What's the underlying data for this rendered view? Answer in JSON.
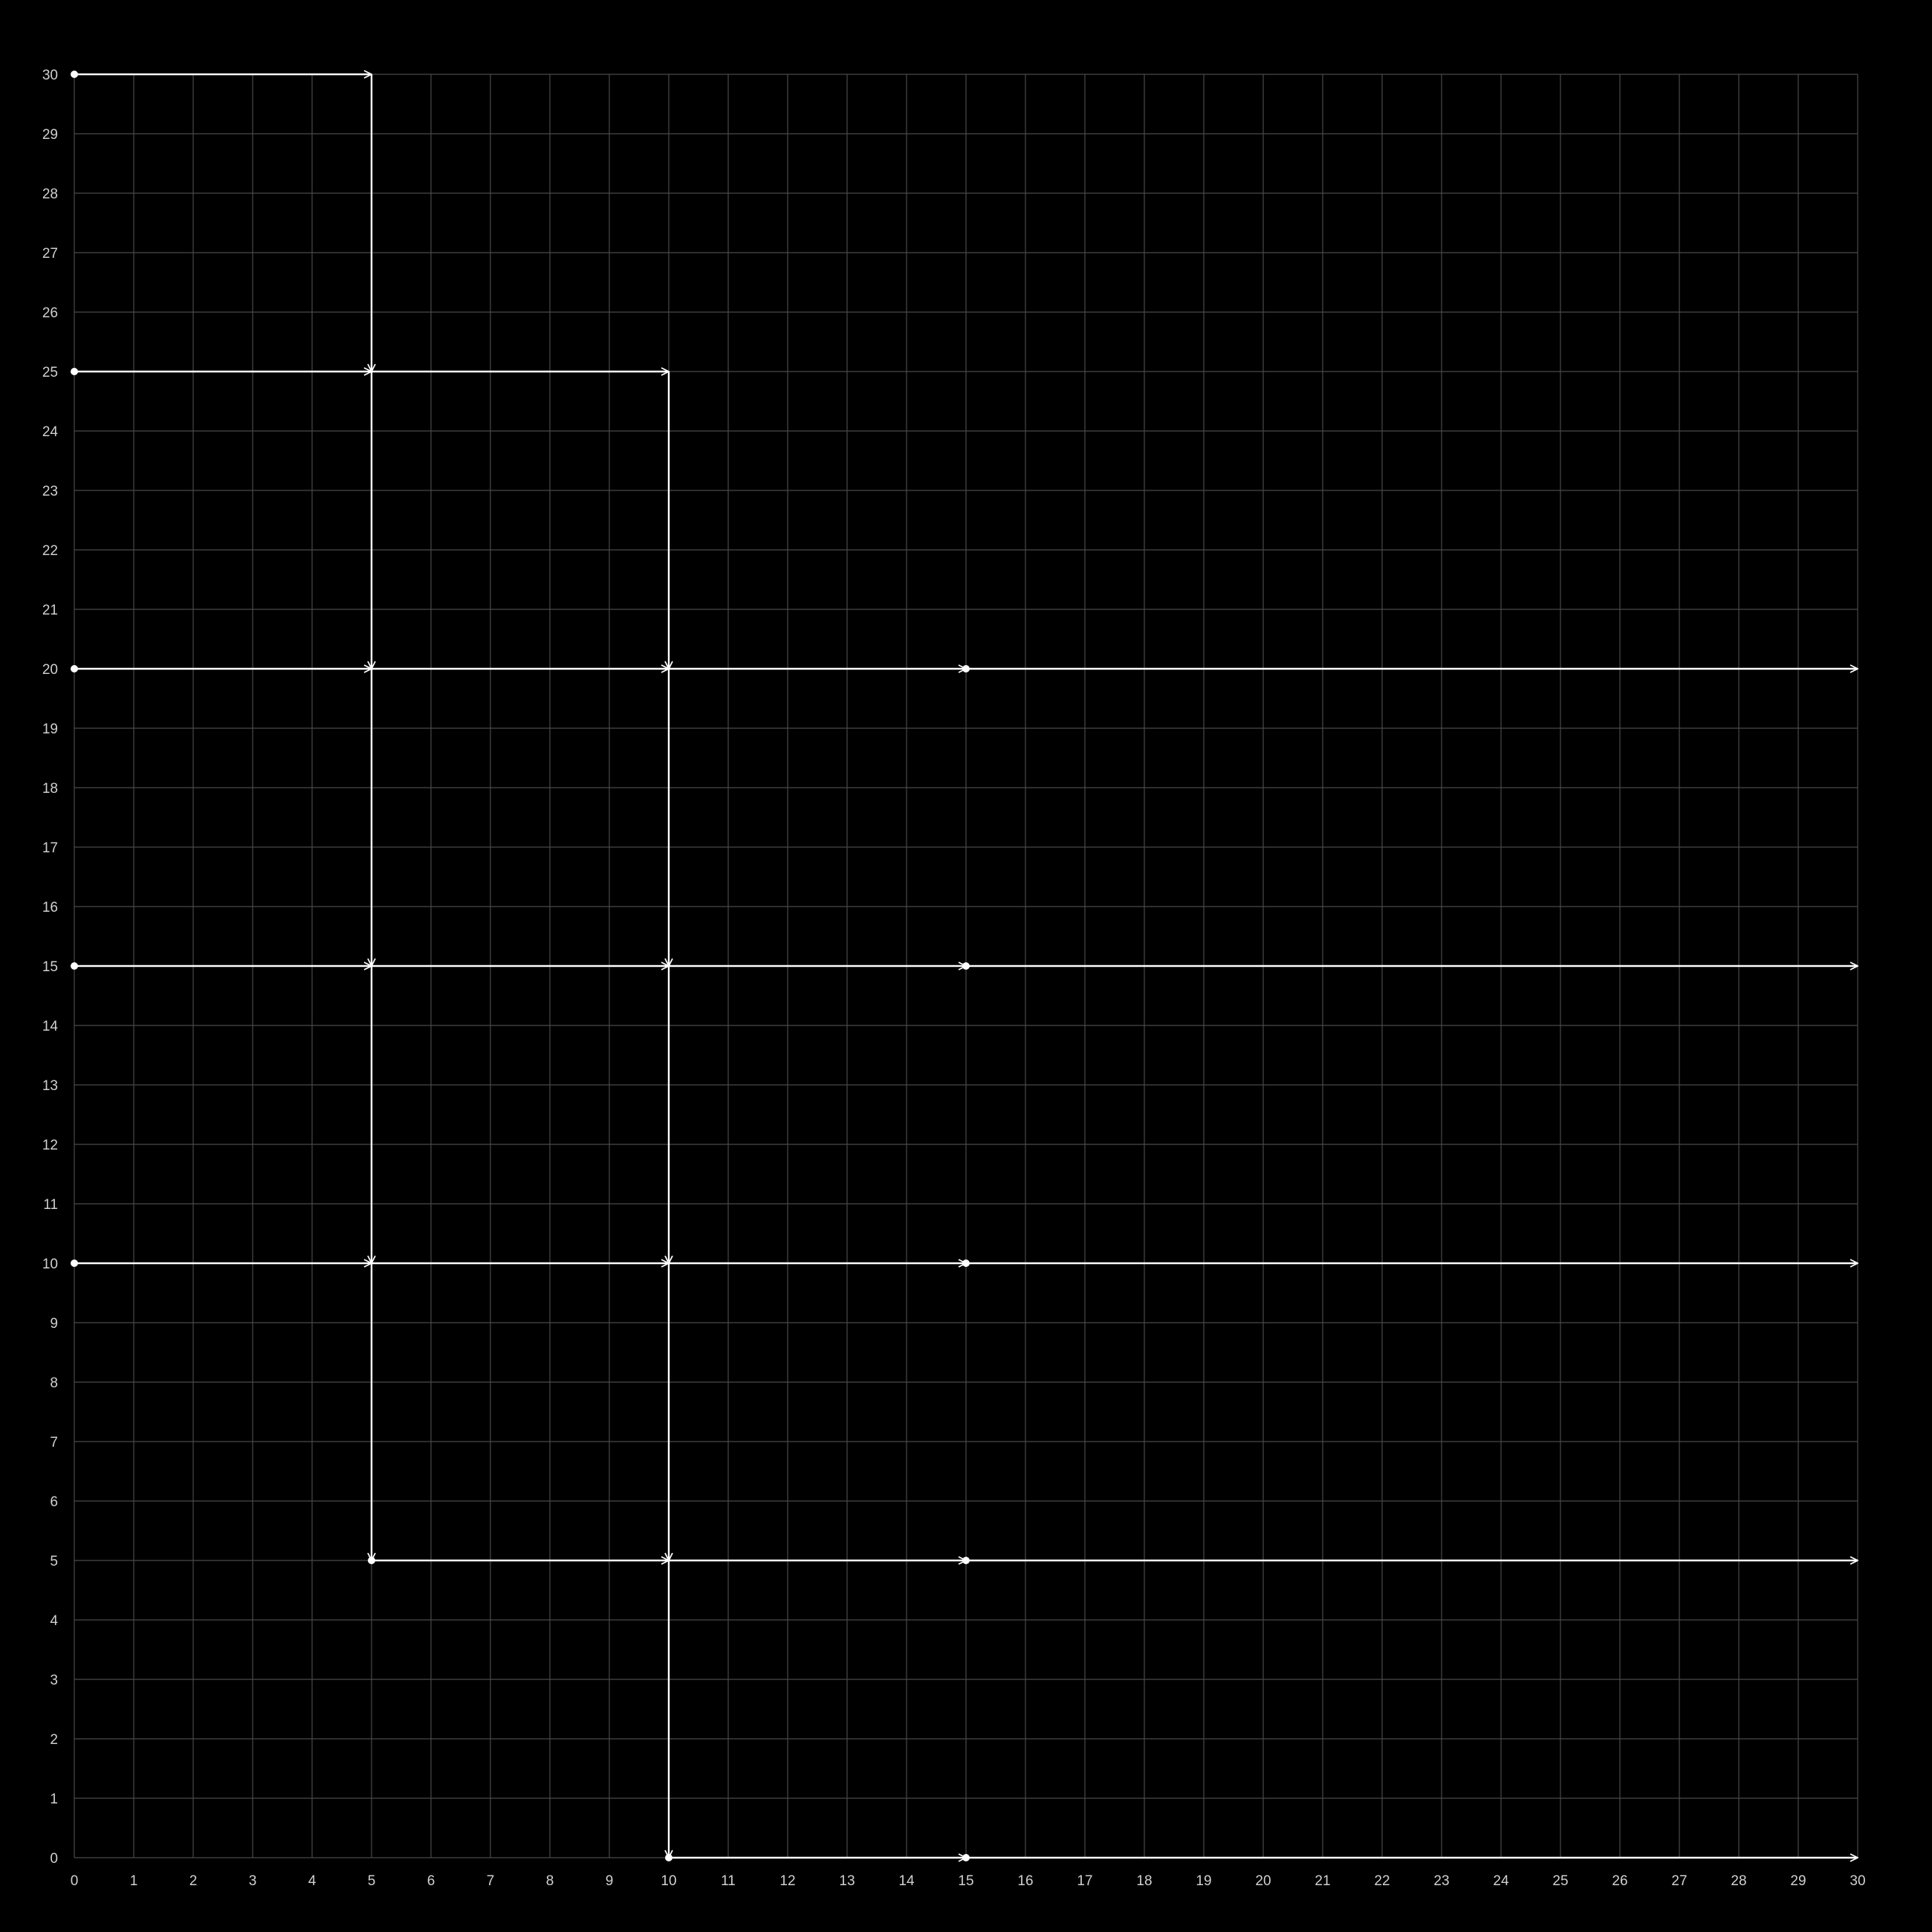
{
  "diagram": {
    "type": "grid-graph",
    "colors": {
      "background": "#000000",
      "grid": "#4a4a4a",
      "edge": "#ffffff",
      "label": "#d0d0d0"
    },
    "x_range": [
      0,
      30
    ],
    "y_range": [
      0,
      30
    ],
    "x_ticks": [
      "0",
      "1",
      "2",
      "3",
      "4",
      "5",
      "6",
      "7",
      "8",
      "9",
      "10",
      "11",
      "12",
      "13",
      "14",
      "15",
      "16",
      "17",
      "18",
      "19",
      "20",
      "21",
      "22",
      "23",
      "24",
      "25",
      "26",
      "27",
      "28",
      "29",
      "30"
    ],
    "y_ticks": [
      "0",
      "1",
      "2",
      "3",
      "4",
      "5",
      "6",
      "7",
      "8",
      "9",
      "10",
      "11",
      "12",
      "13",
      "14",
      "15",
      "16",
      "17",
      "18",
      "19",
      "20",
      "21",
      "22",
      "23",
      "24",
      "25",
      "26",
      "27",
      "28",
      "29",
      "30"
    ],
    "nodes": [
      {
        "id": "n-0-30",
        "x": 0,
        "y": 30
      },
      {
        "id": "n-0-25",
        "x": 0,
        "y": 25
      },
      {
        "id": "n-0-20",
        "x": 0,
        "y": 20
      },
      {
        "id": "n-0-15",
        "x": 0,
        "y": 15
      },
      {
        "id": "n-0-10",
        "x": 0,
        "y": 10
      },
      {
        "id": "n-5-5",
        "x": 5,
        "y": 5
      },
      {
        "id": "n-10-0",
        "x": 10,
        "y": 0
      },
      {
        "id": "n-15-20",
        "x": 15,
        "y": 20
      },
      {
        "id": "n-15-15",
        "x": 15,
        "y": 15
      },
      {
        "id": "n-15-10",
        "x": 15,
        "y": 10
      },
      {
        "id": "n-15-5",
        "x": 15,
        "y": 5
      },
      {
        "id": "n-15-0",
        "x": 15,
        "y": 0
      }
    ],
    "edges": [
      {
        "from": [
          0,
          30
        ],
        "to": [
          5,
          30
        ]
      },
      {
        "from": [
          5,
          30
        ],
        "to": [
          5,
          25
        ]
      },
      {
        "from": [
          0,
          25
        ],
        "to": [
          5,
          25
        ]
      },
      {
        "from": [
          5,
          25
        ],
        "to": [
          10,
          25
        ]
      },
      {
        "from": [
          5,
          25
        ],
        "to": [
          5,
          20
        ]
      },
      {
        "from": [
          10,
          25
        ],
        "to": [
          10,
          20
        ]
      },
      {
        "from": [
          0,
          20
        ],
        "to": [
          5,
          20
        ]
      },
      {
        "from": [
          5,
          20
        ],
        "to": [
          10,
          20
        ]
      },
      {
        "from": [
          10,
          20
        ],
        "to": [
          15,
          20
        ]
      },
      {
        "from": [
          15,
          20
        ],
        "to": [
          30,
          20
        ]
      },
      {
        "from": [
          5,
          20
        ],
        "to": [
          5,
          15
        ]
      },
      {
        "from": [
          10,
          20
        ],
        "to": [
          10,
          15
        ]
      },
      {
        "from": [
          0,
          15
        ],
        "to": [
          5,
          15
        ]
      },
      {
        "from": [
          5,
          15
        ],
        "to": [
          10,
          15
        ]
      },
      {
        "from": [
          10,
          15
        ],
        "to": [
          15,
          15
        ]
      },
      {
        "from": [
          15,
          15
        ],
        "to": [
          30,
          15
        ]
      },
      {
        "from": [
          5,
          15
        ],
        "to": [
          5,
          10
        ]
      },
      {
        "from": [
          10,
          15
        ],
        "to": [
          10,
          10
        ]
      },
      {
        "from": [
          0,
          10
        ],
        "to": [
          5,
          10
        ]
      },
      {
        "from": [
          5,
          10
        ],
        "to": [
          10,
          10
        ]
      },
      {
        "from": [
          10,
          10
        ],
        "to": [
          15,
          10
        ]
      },
      {
        "from": [
          15,
          10
        ],
        "to": [
          30,
          10
        ]
      },
      {
        "from": [
          5,
          10
        ],
        "to": [
          5,
          5
        ]
      },
      {
        "from": [
          10,
          10
        ],
        "to": [
          10,
          5
        ]
      },
      {
        "from": [
          5,
          5
        ],
        "to": [
          10,
          5
        ]
      },
      {
        "from": [
          10,
          5
        ],
        "to": [
          15,
          5
        ]
      },
      {
        "from": [
          15,
          5
        ],
        "to": [
          30,
          5
        ]
      },
      {
        "from": [
          10,
          5
        ],
        "to": [
          10,
          0
        ]
      },
      {
        "from": [
          10,
          0
        ],
        "to": [
          15,
          0
        ]
      },
      {
        "from": [
          15,
          0
        ],
        "to": [
          30,
          0
        ]
      }
    ]
  }
}
